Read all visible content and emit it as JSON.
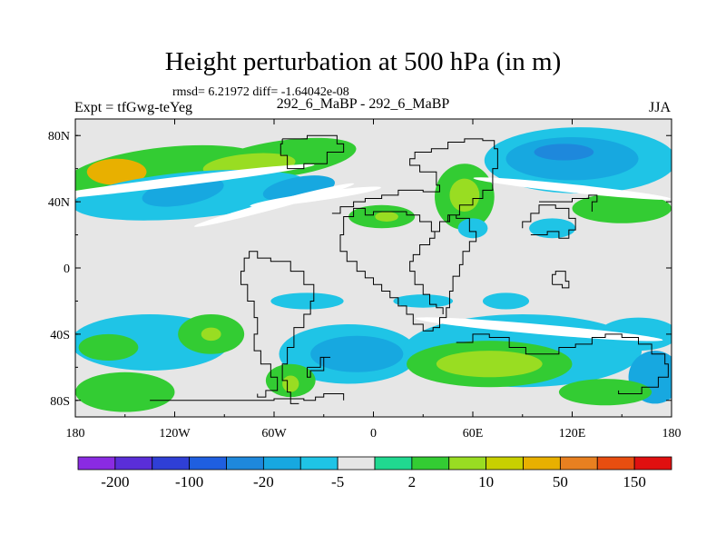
{
  "chart_data": {
    "type": "heatmap",
    "title": "Height perturbation at 500 hPa (in m)",
    "stats_text": "rmsd= 6.21972 diff= -1.64042e-08",
    "left_label": "Expt = tfGwg-teYeg",
    "center_label": "292_6_MaBP - 292_6_MaBP",
    "right_label": "JJA",
    "x_ticks": [
      {
        "value": -180,
        "label": "180"
      },
      {
        "value": -120,
        "label": "120W"
      },
      {
        "value": -60,
        "label": "60W"
      },
      {
        "value": 0,
        "label": "0"
      },
      {
        "value": 60,
        "label": "60E"
      },
      {
        "value": 120,
        "label": "120E"
      },
      {
        "value": 180,
        "label": "180"
      }
    ],
    "y_ticks": [
      {
        "value": 80,
        "label": "80N"
      },
      {
        "value": 40,
        "label": "40N"
      },
      {
        "value": 0,
        "label": "0"
      },
      {
        "value": -40,
        "label": "40S"
      },
      {
        "value": -80,
        "label": "80S"
      }
    ],
    "xlim": [
      -180,
      180
    ],
    "ylim": [
      -90,
      90
    ],
    "colorbar": {
      "colors": [
        "#8a2be2",
        "#5a2ed8",
        "#2f3fd6",
        "#1f5fe0",
        "#1e88dc",
        "#17a8e0",
        "#1fc4e6",
        "#e6e6e6",
        "#20d890",
        "#33cc33",
        "#99dd22",
        "#c8d000",
        "#e8b000",
        "#e88020",
        "#e84e10",
        "#e01010"
      ],
      "labels": [
        {
          "after_box": 1,
          "text": "-200"
        },
        {
          "after_box": 3,
          "text": "-100"
        },
        {
          "after_box": 5,
          "text": "-20"
        },
        {
          "after_box": 7,
          "text": "-5"
        },
        {
          "after_box": 9,
          "text": "2"
        },
        {
          "after_box": 11,
          "text": "10"
        },
        {
          "after_box": 13,
          "text": "50"
        },
        {
          "after_box": 15,
          "text": "150"
        }
      ]
    },
    "anomalies": [
      {
        "name": "nh-band-west",
        "lon": -125,
        "lat": 57,
        "rlon": 62,
        "rlat": 16,
        "rot": -6,
        "level": 9
      },
      {
        "name": "nh-band-west-peak",
        "lon": -155,
        "lat": 58,
        "rlon": 18,
        "rlat": 8,
        "rot": 0,
        "level": 12
      },
      {
        "name": "nh-band-mid",
        "lon": -55,
        "lat": 66,
        "rlon": 45,
        "rlat": 11,
        "rot": -8,
        "level": 9
      },
      {
        "name": "nh-band-mid-core",
        "lon": -75,
        "lat": 62,
        "rlon": 28,
        "rlat": 7,
        "rot": -5,
        "level": 10
      },
      {
        "name": "cyan-band-40n",
        "lon": -110,
        "lat": 44,
        "rlon": 72,
        "rlat": 14,
        "rot": -5,
        "level": 6
      },
      {
        "name": "blue-core-40n-a",
        "lon": -115,
        "lat": 46,
        "rlon": 25,
        "rlat": 8,
        "rot": -10,
        "level": 5
      },
      {
        "name": "blue-core-40n-b",
        "lon": -45,
        "lat": 48,
        "rlon": 22,
        "rlat": 7,
        "rot": -10,
        "level": 5
      },
      {
        "name": "atlantic-green",
        "lon": 5,
        "lat": 31,
        "rlon": 20,
        "rlat": 7,
        "rot": 0,
        "level": 9
      },
      {
        "name": "atlantic-yellow",
        "lon": 8,
        "lat": 31,
        "rlon": 7,
        "rlat": 3,
        "rot": 0,
        "level": 10
      },
      {
        "name": "asia-green",
        "lon": 55,
        "lat": 43,
        "rlon": 18,
        "rlat": 20,
        "rot": 0,
        "level": 9
      },
      {
        "name": "asia-yellow",
        "lon": 55,
        "lat": 44,
        "rlon": 9,
        "rlat": 10,
        "rot": 0,
        "level": 10
      },
      {
        "name": "siberia-low",
        "lon": 125,
        "lat": 65,
        "rlon": 58,
        "rlat": 20,
        "rot": 0,
        "level": 6
      },
      {
        "name": "siberia-low-mid",
        "lon": 120,
        "lat": 66,
        "rlon": 40,
        "rlat": 13,
        "rot": 0,
        "level": 5
      },
      {
        "name": "siberia-low-core",
        "lon": 115,
        "lat": 70,
        "rlon": 18,
        "rlat": 5,
        "rot": 0,
        "level": 4
      },
      {
        "name": "pacific-green",
        "lon": 150,
        "lat": 36,
        "rlon": 30,
        "rlat": 9,
        "rot": 0,
        "level": 9
      },
      {
        "name": "china-cyan",
        "lon": 60,
        "lat": 24,
        "rlon": 9,
        "rlat": 6,
        "rot": 0,
        "level": 6
      },
      {
        "name": "asia-cyan-tail",
        "lon": 108,
        "lat": 24,
        "rlon": 14,
        "rlat": 6,
        "rot": 0,
        "level": 6
      },
      {
        "name": "atlantic-cyan-south",
        "lon": -40,
        "lat": -20,
        "rlon": 22,
        "rlat": 5,
        "rot": 0,
        "level": 6
      },
      {
        "name": "indian-cyan",
        "lon": 30,
        "lat": -20,
        "rlon": 18,
        "rlat": 4,
        "rot": 0,
        "level": 6
      },
      {
        "name": "sh-west-cyan",
        "lon": -135,
        "lat": -45,
        "rlon": 48,
        "rlat": 17,
        "rot": 0,
        "level": 6
      },
      {
        "name": "sh-west-green",
        "lon": -98,
        "lat": -40,
        "rlon": 20,
        "rlat": 12,
        "rot": 0,
        "level": 9
      },
      {
        "name": "sh-west-yellow",
        "lon": -98,
        "lat": -40,
        "rlon": 6,
        "rlat": 4,
        "rot": 0,
        "level": 10
      },
      {
        "name": "sh-west-green-b",
        "lon": -160,
        "lat": -48,
        "rlon": 18,
        "rlat": 8,
        "rot": 0,
        "level": 9
      },
      {
        "name": "sh-sw-green",
        "lon": -150,
        "lat": -75,
        "rlon": 30,
        "rlat": 12,
        "rot": 0,
        "level": 9
      },
      {
        "name": "sh-mid-cyan",
        "lon": -15,
        "lat": -52,
        "rlon": 42,
        "rlat": 18,
        "rot": 0,
        "level": 6
      },
      {
        "name": "sh-mid-blue",
        "lon": -10,
        "lat": -52,
        "rlon": 28,
        "rlat": 11,
        "rot": 0,
        "level": 5
      },
      {
        "name": "sh-sa-green",
        "lon": -50,
        "lat": -68,
        "rlon": 15,
        "rlat": 10,
        "rot": 0,
        "level": 9
      },
      {
        "name": "sh-sa-yellow",
        "lon": -50,
        "lat": -70,
        "rlon": 5,
        "rlat": 5,
        "rot": 0,
        "level": 10
      },
      {
        "name": "sh-east-cyan",
        "lon": 90,
        "lat": -50,
        "rlon": 72,
        "rlat": 22,
        "rot": 0,
        "level": 6
      },
      {
        "name": "sh-east-green",
        "lon": 70,
        "lat": -58,
        "rlon": 50,
        "rlat": 14,
        "rot": 0,
        "level": 9
      },
      {
        "name": "sh-east-yellow",
        "lon": 70,
        "lat": -58,
        "rlon": 32,
        "rlat": 8,
        "rot": 0,
        "level": 10
      },
      {
        "name": "sh-far-east-cyan",
        "lon": 160,
        "lat": -40,
        "rlon": 24,
        "rlat": 10,
        "rot": 0,
        "level": 6
      },
      {
        "name": "sh-far-east-blue",
        "lon": 170,
        "lat": -66,
        "rlon": 16,
        "rlat": 16,
        "rot": 0,
        "level": 5
      },
      {
        "name": "sh-far-east-green",
        "lon": 140,
        "lat": -75,
        "rlon": 28,
        "rlat": 8,
        "rot": 0,
        "level": 9
      },
      {
        "name": "se-pacific-cyan",
        "lon": 80,
        "lat": -20,
        "rlon": 14,
        "rlat": 5,
        "rot": 0,
        "level": 6
      }
    ],
    "white_gaps": [
      {
        "lon": -120,
        "lat": 52,
        "rlon": 85,
        "rlat": 2.8,
        "rot": -7
      },
      {
        "lon": -35,
        "lat": 43,
        "rlon": 40,
        "rlat": 2.6,
        "rot": -8
      },
      {
        "lon": 120,
        "lat": 48,
        "rlon": 60,
        "rlat": 2.5,
        "rot": 6
      },
      {
        "lon": -60,
        "lat": 38,
        "rlon": 50,
        "rlat": 2.5,
        "rot": -15
      },
      {
        "lon": 100,
        "lat": -37,
        "rlon": 75,
        "rlat": 3,
        "rot": 5
      }
    ],
    "coastlines": [
      [
        [
          -55,
          78
        ],
        [
          -40,
          80
        ],
        [
          -22,
          75
        ],
        [
          -18,
          70
        ],
        [
          -28,
          63
        ],
        [
          -42,
          60
        ],
        [
          -52,
          68
        ],
        [
          -56,
          75
        ],
        [
          -55,
          78
        ]
      ],
      [
        [
          -25,
          33
        ],
        [
          -20,
          37
        ],
        [
          -12,
          40
        ],
        [
          -5,
          42
        ],
        [
          5,
          44
        ],
        [
          15,
          47
        ],
        [
          30,
          46
        ],
        [
          40,
          50
        ],
        [
          38,
          58
        ],
        [
          28,
          62
        ],
        [
          22,
          66
        ],
        [
          25,
          70
        ],
        [
          35,
          72
        ],
        [
          45,
          76
        ],
        [
          55,
          78
        ],
        [
          66,
          77
        ],
        [
          73,
          72
        ],
        [
          75,
          60
        ],
        [
          72,
          47
        ],
        [
          66,
          42
        ],
        [
          60,
          38
        ],
        [
          52,
          32
        ],
        [
          46,
          28
        ],
        [
          40,
          22
        ],
        [
          35,
          28
        ],
        [
          28,
          32
        ],
        [
          20,
          34
        ],
        [
          10,
          34
        ],
        [
          0,
          32
        ],
        [
          -5,
          36
        ],
        [
          -12,
          31
        ],
        [
          -18,
          28
        ],
        [
          -18,
          20
        ],
        [
          -20,
          10
        ],
        [
          -16,
          4
        ],
        [
          -10,
          -2
        ],
        [
          -5,
          -6
        ],
        [
          0,
          -10
        ],
        [
          5,
          -14
        ],
        [
          10,
          -18
        ],
        [
          15,
          -23
        ],
        [
          20,
          -28
        ],
        [
          24,
          -34
        ],
        [
          30,
          -38
        ],
        [
          36,
          -36
        ],
        [
          40,
          -30
        ],
        [
          44,
          -24
        ],
        [
          46,
          -14
        ],
        [
          48,
          -5
        ],
        [
          52,
          2
        ],
        [
          54,
          10
        ],
        [
          58,
          16
        ],
        [
          62,
          22
        ],
        [
          58,
          30
        ],
        [
          50,
          32
        ],
        [
          45,
          28
        ],
        [
          40,
          22
        ],
        [
          37,
          18
        ],
        [
          34,
          14
        ],
        [
          28,
          8
        ],
        [
          24,
          4
        ],
        [
          22,
          -2
        ],
        [
          25,
          -10
        ],
        [
          30,
          -16
        ],
        [
          34,
          -22
        ],
        [
          38,
          -24
        ],
        [
          42,
          -28
        ]
      ],
      [
        [
          -135,
          -80
        ],
        [
          -120,
          -80
        ],
        [
          -100,
          -80
        ],
        [
          -80,
          -80
        ],
        [
          -60,
          -79
        ],
        [
          -42,
          -80
        ],
        [
          -35,
          -78
        ],
        [
          -30,
          -76
        ],
        [
          -18,
          -80
        ]
      ],
      [
        [
          -45,
          -82
        ],
        [
          -50,
          -75
        ],
        [
          -52,
          -68
        ],
        [
          -55,
          -58
        ],
        [
          -52,
          -48
        ],
        [
          -48,
          -36
        ],
        [
          -42,
          -28
        ],
        [
          -38,
          -20
        ],
        [
          -36,
          -10
        ],
        [
          -42,
          -2
        ],
        [
          -50,
          4
        ],
        [
          -62,
          6
        ],
        [
          -70,
          10
        ],
        [
          -75,
          6
        ],
        [
          -78,
          -2
        ],
        [
          -80,
          -10
        ],
        [
          -76,
          -20
        ],
        [
          -72,
          -30
        ],
        [
          -70,
          -40
        ],
        [
          -72,
          -50
        ],
        [
          -68,
          -58
        ],
        [
          -62,
          -66
        ],
        [
          -58,
          -74
        ],
        [
          -65,
          -78
        ],
        [
          -70,
          -76
        ]
      ],
      [
        [
          -40,
          -60
        ],
        [
          -32,
          -54
        ],
        [
          -26,
          -54
        ],
        [
          -30,
          -62
        ],
        [
          -38,
          -66
        ],
        [
          -40,
          -60
        ]
      ],
      [
        [
          50,
          -45
        ],
        [
          60,
          -40
        ],
        [
          70,
          -42
        ],
        [
          82,
          -48
        ],
        [
          92,
          -52
        ],
        [
          102,
          -52
        ],
        [
          112,
          -48
        ],
        [
          122,
          -46
        ],
        [
          132,
          -42
        ],
        [
          140,
          -40
        ],
        [
          150,
          -42
        ],
        [
          160,
          -46
        ],
        [
          168,
          -52
        ],
        [
          176,
          -58
        ],
        [
          178,
          -66
        ],
        [
          172,
          -72
        ],
        [
          162,
          -76
        ],
        [
          148,
          -74
        ]
      ],
      [
        [
          95,
          20
        ],
        [
          105,
          22
        ],
        [
          112,
          18
        ],
        [
          118,
          23
        ],
        [
          122,
          30
        ],
        [
          118,
          36
        ],
        [
          110,
          38
        ],
        [
          100,
          33
        ],
        [
          95,
          28
        ],
        [
          90,
          24
        ]
      ],
      [
        [
          100,
          40
        ],
        [
          110,
          40
        ],
        [
          120,
          42
        ],
        [
          130,
          44
        ],
        [
          135,
          40
        ],
        [
          132,
          34
        ]
      ],
      [
        [
          108,
          -10
        ],
        [
          114,
          -12
        ],
        [
          118,
          -8
        ],
        [
          116,
          -2
        ],
        [
          110,
          -4
        ],
        [
          108,
          -10
        ]
      ]
    ]
  }
}
